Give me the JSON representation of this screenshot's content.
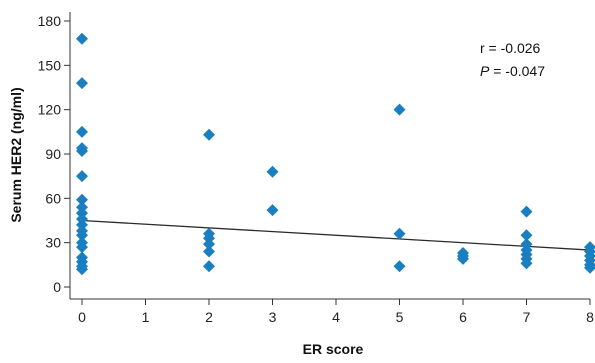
{
  "chart_data": {
    "type": "scatter",
    "title": "",
    "xlabel": "ER score",
    "ylabel": "Serum HER2 (ng/ml)",
    "xlim": [
      0,
      8
    ],
    "ylim": [
      -10,
      180
    ],
    "xticks": [
      0,
      1,
      2,
      3,
      4,
      5,
      6,
      7,
      8
    ],
    "yticks": [
      0,
      30,
      60,
      90,
      120,
      150,
      180
    ],
    "grid": false,
    "legend": "none",
    "marker_color": "#1a7fc1",
    "trend_color": "#2b2b2b",
    "annotation": {
      "r_text": "r = -0.026",
      "p_symbol": "P",
      "p_rest": " = -0.047"
    },
    "points": [
      {
        "x": 0,
        "y": 168
      },
      {
        "x": 0,
        "y": 138
      },
      {
        "x": 0,
        "y": 105
      },
      {
        "x": 0,
        "y": 94
      },
      {
        "x": 0,
        "y": 92
      },
      {
        "x": 0,
        "y": 75
      },
      {
        "x": 0,
        "y": 59
      },
      {
        "x": 0,
        "y": 54
      },
      {
        "x": 0,
        "y": 50
      },
      {
        "x": 0,
        "y": 46
      },
      {
        "x": 0,
        "y": 42
      },
      {
        "x": 0,
        "y": 38
      },
      {
        "x": 0,
        "y": 35
      },
      {
        "x": 0,
        "y": 30
      },
      {
        "x": 0,
        "y": 27
      },
      {
        "x": 0,
        "y": 20
      },
      {
        "x": 0,
        "y": 17
      },
      {
        "x": 0,
        "y": 14
      },
      {
        "x": 0,
        "y": 12
      },
      {
        "x": 2,
        "y": 103
      },
      {
        "x": 2,
        "y": 36
      },
      {
        "x": 2,
        "y": 33
      },
      {
        "x": 2,
        "y": 29
      },
      {
        "x": 2,
        "y": 24
      },
      {
        "x": 2,
        "y": 14
      },
      {
        "x": 3,
        "y": 78
      },
      {
        "x": 3,
        "y": 52
      },
      {
        "x": 5,
        "y": 120
      },
      {
        "x": 5,
        "y": 36
      },
      {
        "x": 5,
        "y": 14
      },
      {
        "x": 6,
        "y": 23
      },
      {
        "x": 6,
        "y": 21
      },
      {
        "x": 6,
        "y": 19
      },
      {
        "x": 7,
        "y": 51
      },
      {
        "x": 7,
        "y": 35
      },
      {
        "x": 7,
        "y": 29
      },
      {
        "x": 7,
        "y": 25
      },
      {
        "x": 7,
        "y": 22
      },
      {
        "x": 7,
        "y": 19
      },
      {
        "x": 7,
        "y": 16
      },
      {
        "x": 8,
        "y": 27
      },
      {
        "x": 8,
        "y": 24
      },
      {
        "x": 8,
        "y": 21
      },
      {
        "x": 8,
        "y": 18
      },
      {
        "x": 8,
        "y": 15
      },
      {
        "x": 8,
        "y": 13
      }
    ],
    "trendline": {
      "x0": 0,
      "y0": 45,
      "x1": 8,
      "y1": 25
    }
  }
}
